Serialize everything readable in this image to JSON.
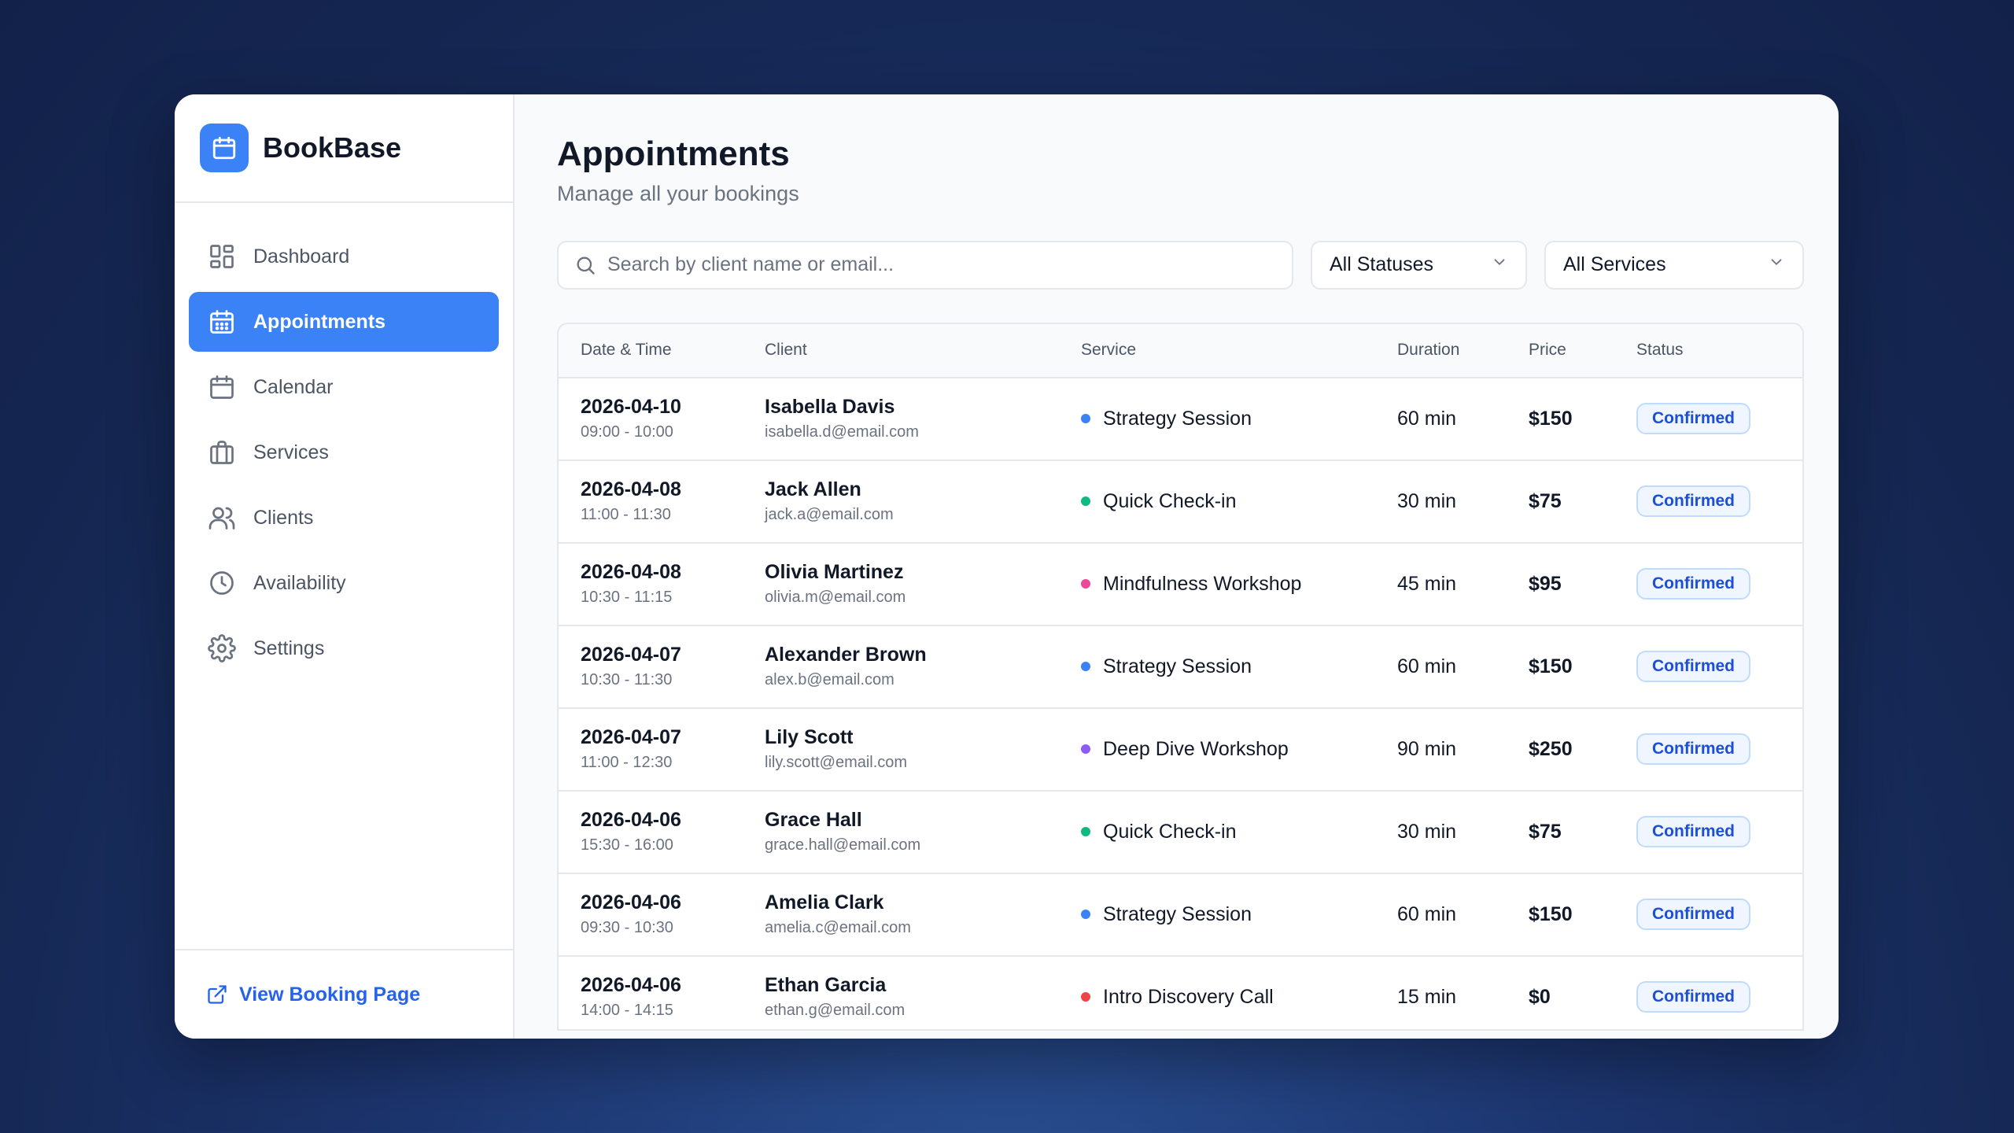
{
  "app": {
    "name": "BookBase",
    "logo_icon": "calendar-icon",
    "accent": "#3b82f6"
  },
  "sidebar": {
    "items": [
      {
        "label": "Dashboard",
        "icon": "dashboard-grid-icon",
        "active": false
      },
      {
        "label": "Appointments",
        "icon": "calendar-grid-icon",
        "active": true
      },
      {
        "label": "Calendar",
        "icon": "calendar-icon",
        "active": false
      },
      {
        "label": "Services",
        "icon": "briefcase-icon",
        "active": false
      },
      {
        "label": "Clients",
        "icon": "users-icon",
        "active": false
      },
      {
        "label": "Availability",
        "icon": "clock-icon",
        "active": false
      },
      {
        "label": "Settings",
        "icon": "gear-icon",
        "active": false
      }
    ],
    "footer_link": "View Booking Page"
  },
  "page": {
    "title": "Appointments",
    "subtitle": "Manage all your bookings"
  },
  "filters": {
    "search_placeholder": "Search by client name or email...",
    "status_value": "All Statuses",
    "service_value": "All Services"
  },
  "table": {
    "headers": [
      "Date & Time",
      "Client",
      "Service",
      "Duration",
      "Price",
      "Status"
    ],
    "rows": [
      {
        "date": "2026-04-10",
        "time": "09:00 - 10:00",
        "client": "Isabella Davis",
        "email": "isabella.d@email.com",
        "service": "Strategy Session",
        "dot": "#3b82f6",
        "duration": "60 min",
        "price": "$150",
        "status": "Confirmed"
      },
      {
        "date": "2026-04-08",
        "time": "11:00 - 11:30",
        "client": "Jack Allen",
        "email": "jack.a@email.com",
        "service": "Quick Check-in",
        "dot": "#10b981",
        "duration": "30 min",
        "price": "$75",
        "status": "Confirmed"
      },
      {
        "date": "2026-04-08",
        "time": "10:30 - 11:15",
        "client": "Olivia Martinez",
        "email": "olivia.m@email.com",
        "service": "Mindfulness Workshop",
        "dot": "#ec4899",
        "duration": "45 min",
        "price": "$95",
        "status": "Confirmed"
      },
      {
        "date": "2026-04-07",
        "time": "10:30 - 11:30",
        "client": "Alexander Brown",
        "email": "alex.b@email.com",
        "service": "Strategy Session",
        "dot": "#3b82f6",
        "duration": "60 min",
        "price": "$150",
        "status": "Confirmed"
      },
      {
        "date": "2026-04-07",
        "time": "11:00 - 12:30",
        "client": "Lily Scott",
        "email": "lily.scott@email.com",
        "service": "Deep Dive Workshop",
        "dot": "#8b5cf6",
        "duration": "90 min",
        "price": "$250",
        "status": "Confirmed"
      },
      {
        "date": "2026-04-06",
        "time": "15:30 - 16:00",
        "client": "Grace Hall",
        "email": "grace.hall@email.com",
        "service": "Quick Check-in",
        "dot": "#10b981",
        "duration": "30 min",
        "price": "$75",
        "status": "Confirmed"
      },
      {
        "date": "2026-04-06",
        "time": "09:30 - 10:30",
        "client": "Amelia Clark",
        "email": "amelia.c@email.com",
        "service": "Strategy Session",
        "dot": "#3b82f6",
        "duration": "60 min",
        "price": "$150",
        "status": "Confirmed"
      },
      {
        "date": "2026-04-06",
        "time": "14:00 - 14:15",
        "client": "Ethan Garcia",
        "email": "ethan.g@email.com",
        "service": "Intro Discovery Call",
        "dot": "#ef4444",
        "duration": "15 min",
        "price": "$0",
        "status": "Confirmed"
      }
    ]
  }
}
